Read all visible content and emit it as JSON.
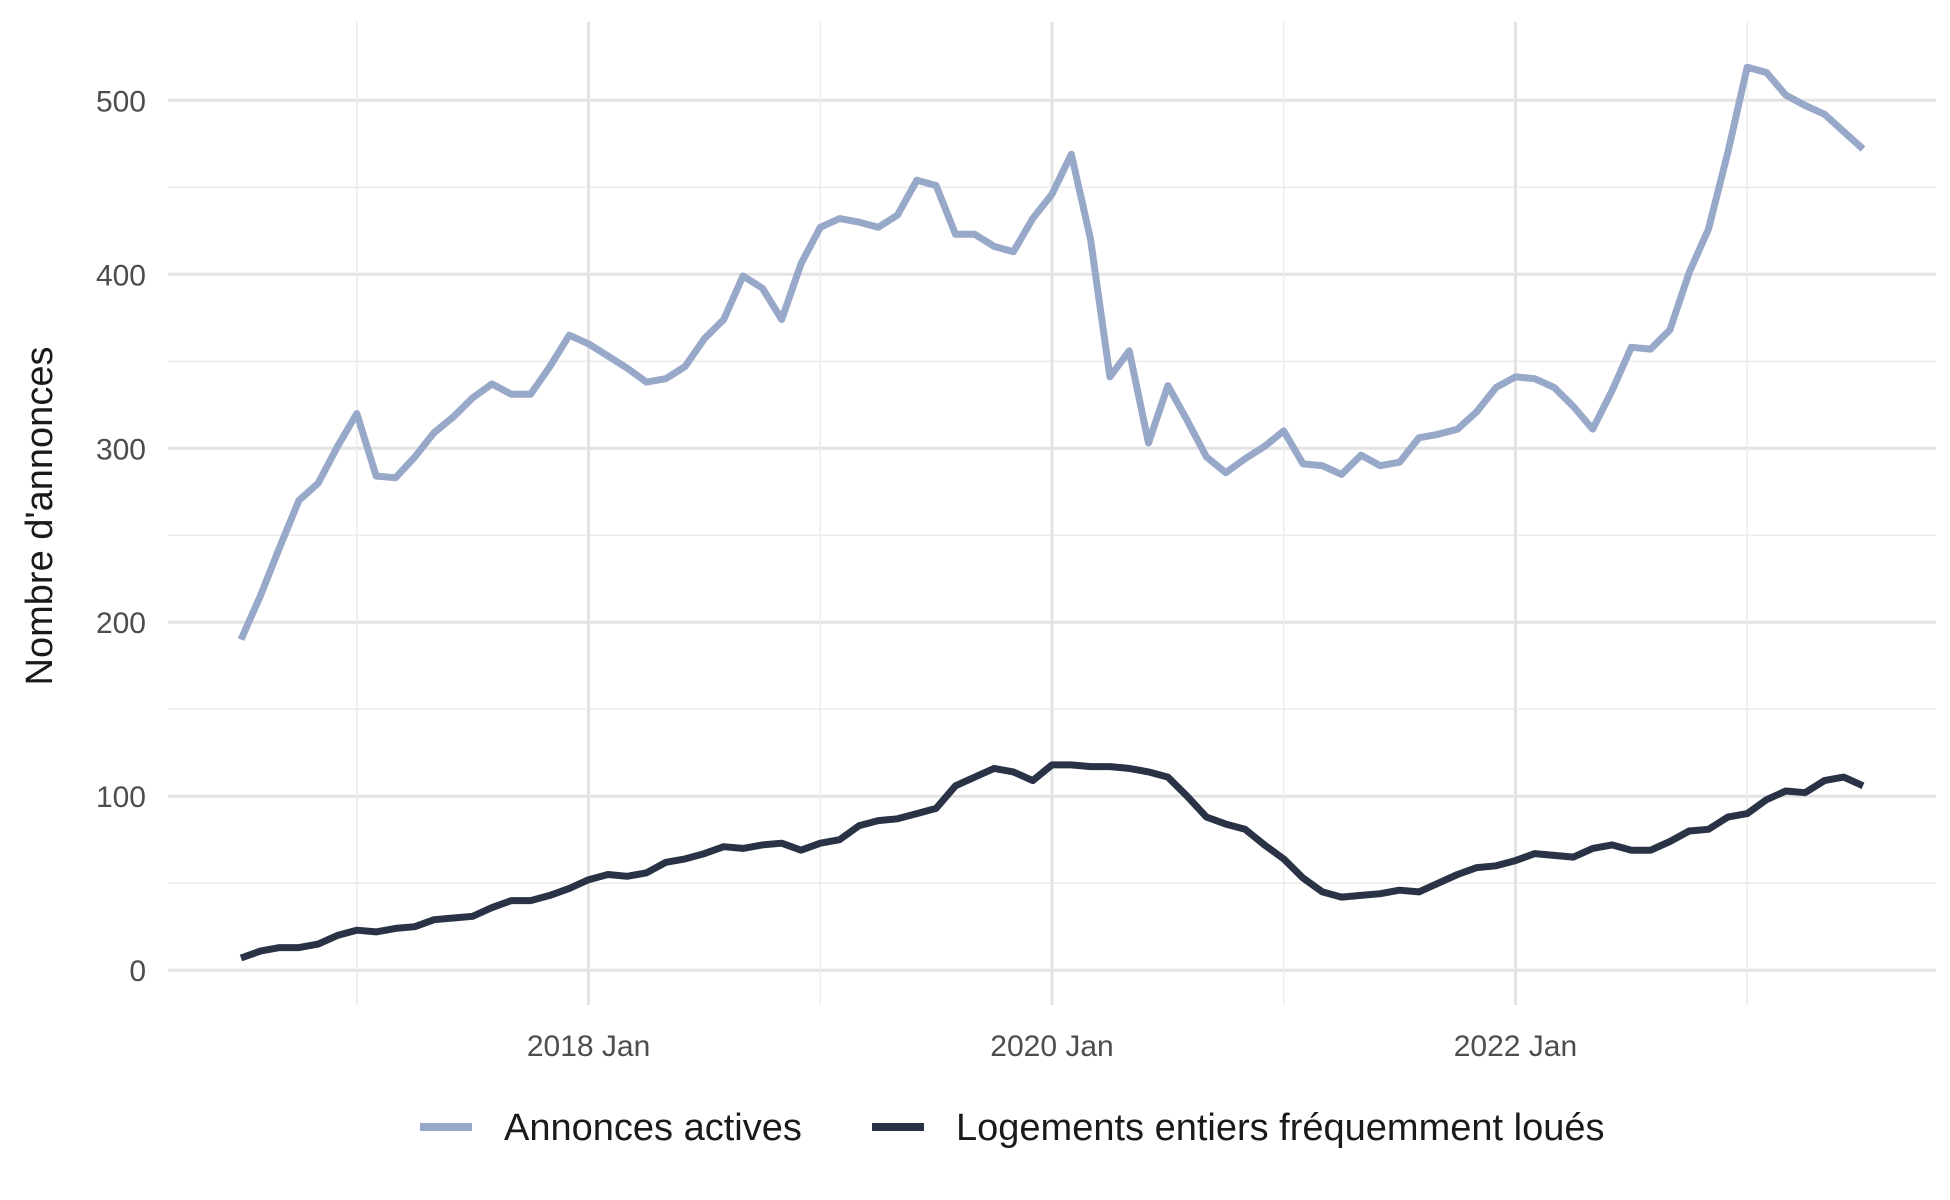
{
  "chart_data": {
    "type": "line",
    "title": "",
    "xlabel": "",
    "ylabel": "Nombre d'annonces",
    "x_start": "2016-07",
    "x_end": "2023-07",
    "x_ticks": [
      {
        "date": "2018-01",
        "label": "2018 Jan"
      },
      {
        "date": "2020-01",
        "label": "2020 Jan"
      },
      {
        "date": "2022-01",
        "label": "2022 Jan"
      }
    ],
    "x_minor_grid": [
      "2017-01",
      "2019-01",
      "2021-01",
      "2023-01"
    ],
    "ylim": [
      -20,
      545
    ],
    "y_ticks": [
      0,
      100,
      200,
      300,
      400,
      500
    ],
    "grid": true,
    "legend_position": "bottom",
    "series": [
      {
        "name": "Annonces actives",
        "color": "#98a8c8",
        "values": [
          190,
          215,
          243,
          270,
          280,
          301,
          320,
          284,
          283,
          295,
          309,
          318,
          329,
          337,
          331,
          331,
          347,
          365,
          360,
          353,
          346,
          338,
          340,
          347,
          363,
          374,
          399,
          392,
          374,
          406,
          427,
          432,
          430,
          427,
          434,
          454,
          451,
          423,
          423,
          416,
          413,
          432,
          446,
          469,
          420,
          341,
          356,
          303,
          336,
          316,
          295,
          286,
          294,
          301,
          310,
          291,
          290,
          285,
          296,
          290,
          292,
          306,
          308,
          311,
          321,
          335,
          341,
          340,
          335,
          324,
          311,
          333,
          358,
          357,
          368,
          401,
          426,
          470,
          519,
          516,
          503,
          497,
          492,
          482,
          472
        ]
      },
      {
        "name": "Logements entiers fréquemment loués",
        "color": "#2a3246",
        "values": [
          7,
          11,
          13,
          13,
          15,
          20,
          23,
          22,
          24,
          25,
          29,
          30,
          31,
          36,
          40,
          40,
          43,
          47,
          52,
          55,
          54,
          56,
          62,
          64,
          67,
          71,
          70,
          72,
          73,
          69,
          73,
          75,
          83,
          86,
          87,
          90,
          93,
          106,
          111,
          116,
          114,
          109,
          118,
          118,
          117,
          117,
          116,
          114,
          111,
          100,
          88,
          84,
          81,
          72,
          64,
          53,
          45,
          42,
          43,
          44,
          46,
          45,
          50,
          55,
          59,
          60,
          63,
          67,
          66,
          65,
          70,
          72,
          69,
          69,
          74,
          80,
          81,
          88,
          90,
          98,
          103,
          102,
          109,
          111,
          106
        ]
      }
    ]
  }
}
